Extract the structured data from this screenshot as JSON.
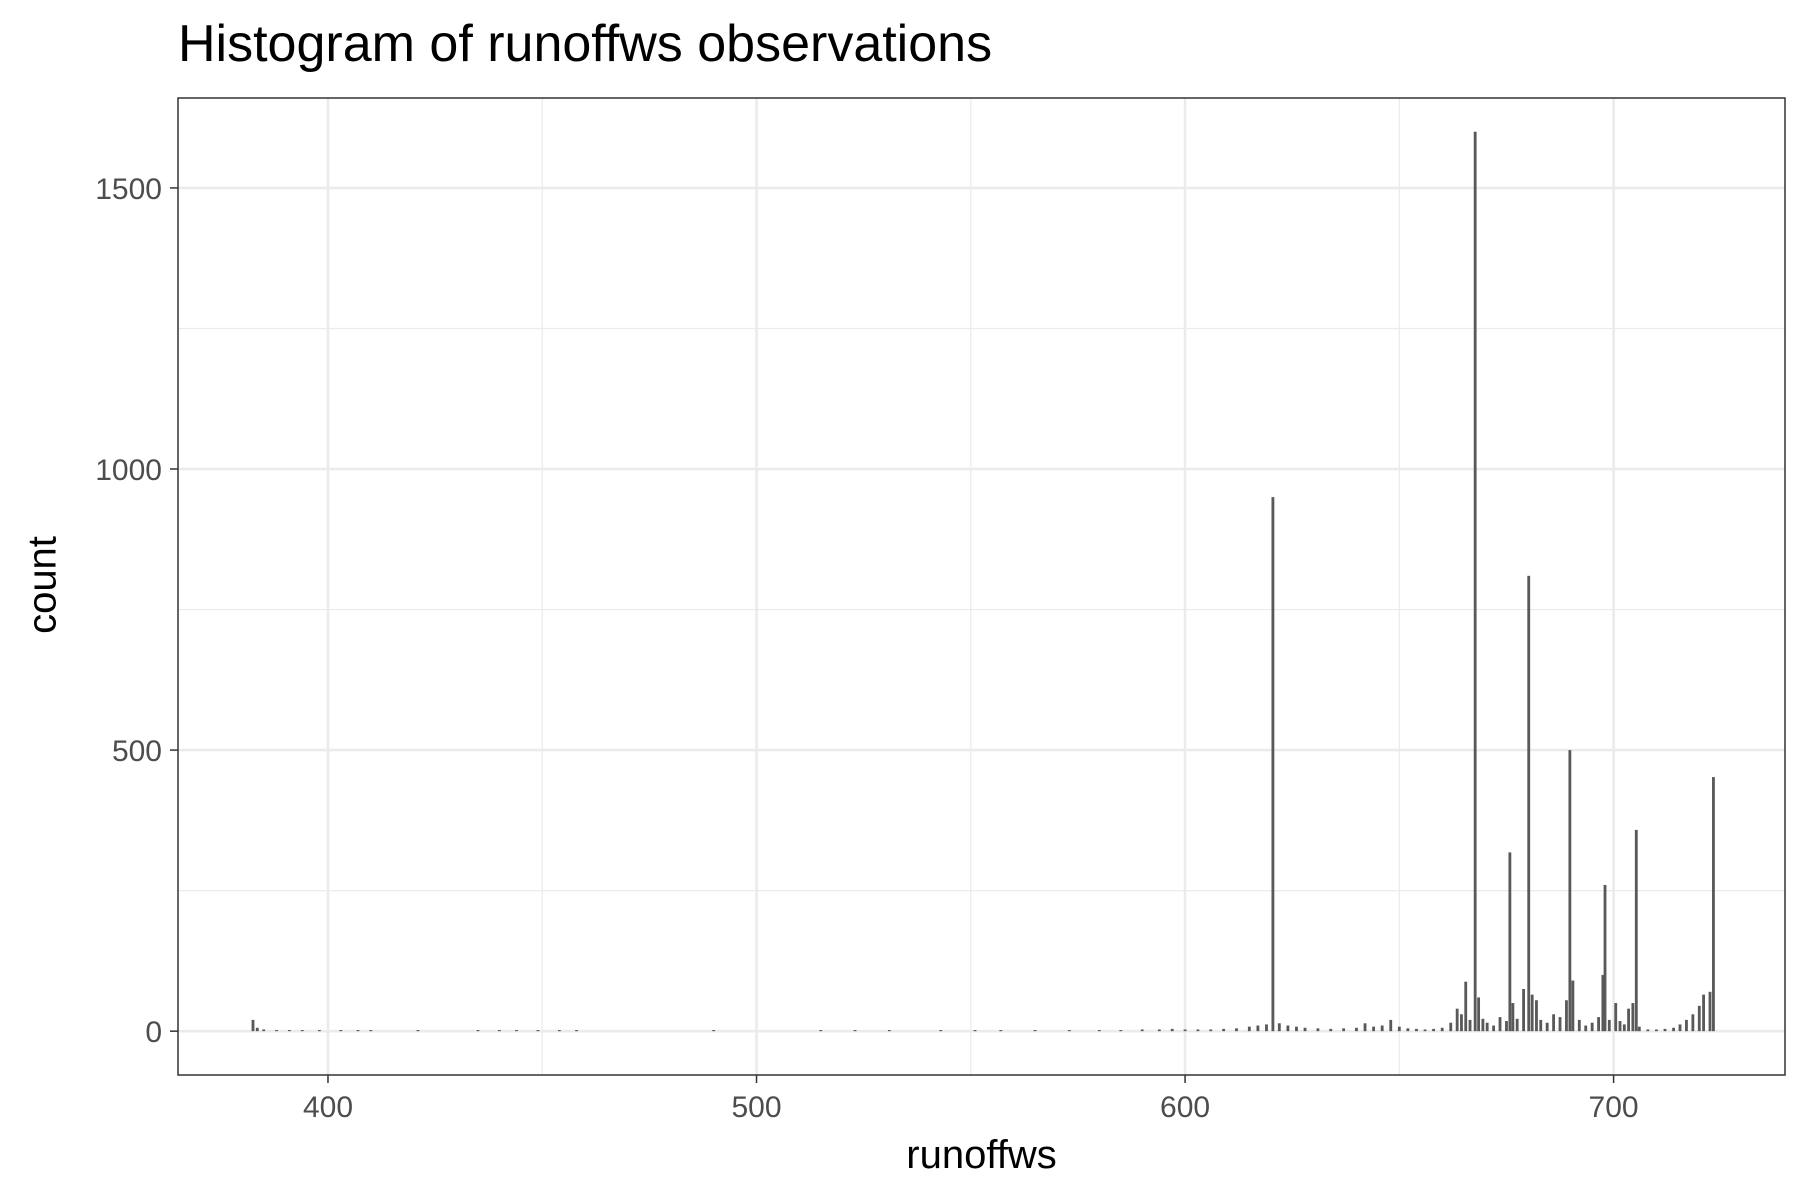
{
  "chart_data": {
    "type": "bar",
    "title": "Histogram of runoffws observations",
    "xlabel": "runoffws",
    "ylabel": "count",
    "xlim": [
      365,
      740
    ],
    "ylim": [
      -78,
      1660
    ],
    "xticks": [
      400,
      500,
      600,
      700
    ],
    "yticks": [
      0,
      500,
      1000,
      1500
    ],
    "grid": true,
    "bar_color": "#595959",
    "binwidth": 0.66,
    "bins": [
      {
        "x": 382.5,
        "count": 20
      },
      {
        "x": 383.5,
        "count": 6
      },
      {
        "x": 385,
        "count": 3
      },
      {
        "x": 388,
        "count": 2
      },
      {
        "x": 391,
        "count": 2
      },
      {
        "x": 394,
        "count": 2
      },
      {
        "x": 398,
        "count": 2
      },
      {
        "x": 403,
        "count": 2
      },
      {
        "x": 407,
        "count": 2
      },
      {
        "x": 410,
        "count": 2
      },
      {
        "x": 421,
        "count": 2
      },
      {
        "x": 435,
        "count": 2
      },
      {
        "x": 440,
        "count": 2
      },
      {
        "x": 444,
        "count": 2
      },
      {
        "x": 449,
        "count": 2
      },
      {
        "x": 454,
        "count": 2
      },
      {
        "x": 458,
        "count": 2
      },
      {
        "x": 490,
        "count": 2
      },
      {
        "x": 515,
        "count": 2
      },
      {
        "x": 523,
        "count": 2
      },
      {
        "x": 531,
        "count": 2
      },
      {
        "x": 543,
        "count": 2
      },
      {
        "x": 551,
        "count": 2
      },
      {
        "x": 557,
        "count": 2
      },
      {
        "x": 565,
        "count": 2
      },
      {
        "x": 573,
        "count": 2
      },
      {
        "x": 580,
        "count": 2
      },
      {
        "x": 585,
        "count": 2
      },
      {
        "x": 590,
        "count": 3
      },
      {
        "x": 594,
        "count": 3
      },
      {
        "x": 597,
        "count": 4
      },
      {
        "x": 600,
        "count": 3
      },
      {
        "x": 603,
        "count": 3
      },
      {
        "x": 606,
        "count": 3
      },
      {
        "x": 609,
        "count": 4
      },
      {
        "x": 612,
        "count": 5
      },
      {
        "x": 615,
        "count": 8
      },
      {
        "x": 617,
        "count": 10
      },
      {
        "x": 619,
        "count": 12
      },
      {
        "x": 620.5,
        "count": 950
      },
      {
        "x": 622,
        "count": 14
      },
      {
        "x": 624,
        "count": 10
      },
      {
        "x": 626,
        "count": 8
      },
      {
        "x": 628,
        "count": 6
      },
      {
        "x": 631,
        "count": 5
      },
      {
        "x": 634,
        "count": 4
      },
      {
        "x": 637,
        "count": 5
      },
      {
        "x": 640,
        "count": 6
      },
      {
        "x": 642,
        "count": 14
      },
      {
        "x": 644,
        "count": 8
      },
      {
        "x": 646,
        "count": 10
      },
      {
        "x": 648,
        "count": 20
      },
      {
        "x": 650,
        "count": 8
      },
      {
        "x": 652,
        "count": 5
      },
      {
        "x": 654,
        "count": 4
      },
      {
        "x": 656,
        "count": 3
      },
      {
        "x": 658,
        "count": 4
      },
      {
        "x": 660,
        "count": 6
      },
      {
        "x": 662,
        "count": 15
      },
      {
        "x": 663.5,
        "count": 40
      },
      {
        "x": 664.5,
        "count": 30
      },
      {
        "x": 665.5,
        "count": 88
      },
      {
        "x": 666.5,
        "count": 20
      },
      {
        "x": 667.7,
        "count": 1600
      },
      {
        "x": 668.5,
        "count": 60
      },
      {
        "x": 669.5,
        "count": 22
      },
      {
        "x": 670.5,
        "count": 15
      },
      {
        "x": 672,
        "count": 10
      },
      {
        "x": 673.5,
        "count": 25
      },
      {
        "x": 675,
        "count": 18
      },
      {
        "x": 675.8,
        "count": 318
      },
      {
        "x": 676.5,
        "count": 50
      },
      {
        "x": 677.5,
        "count": 22
      },
      {
        "x": 679,
        "count": 75
      },
      {
        "x": 680.2,
        "count": 810
      },
      {
        "x": 681,
        "count": 65
      },
      {
        "x": 682,
        "count": 55
      },
      {
        "x": 683,
        "count": 20
      },
      {
        "x": 684.5,
        "count": 15
      },
      {
        "x": 686,
        "count": 30
      },
      {
        "x": 687.5,
        "count": 25
      },
      {
        "x": 689,
        "count": 55
      },
      {
        "x": 689.8,
        "count": 500
      },
      {
        "x": 690.5,
        "count": 90
      },
      {
        "x": 692,
        "count": 20
      },
      {
        "x": 693.5,
        "count": 10
      },
      {
        "x": 695,
        "count": 15
      },
      {
        "x": 696.5,
        "count": 25
      },
      {
        "x": 697.5,
        "count": 100
      },
      {
        "x": 698,
        "count": 260
      },
      {
        "x": 699,
        "count": 20
      },
      {
        "x": 700.5,
        "count": 50
      },
      {
        "x": 701.5,
        "count": 18
      },
      {
        "x": 702.5,
        "count": 12
      },
      {
        "x": 703.5,
        "count": 40
      },
      {
        "x": 704.5,
        "count": 50
      },
      {
        "x": 705.3,
        "count": 358
      },
      {
        "x": 706,
        "count": 8
      },
      {
        "x": 708,
        "count": 3
      },
      {
        "x": 710,
        "count": 3
      },
      {
        "x": 712,
        "count": 4
      },
      {
        "x": 714,
        "count": 6
      },
      {
        "x": 715.5,
        "count": 12
      },
      {
        "x": 717,
        "count": 20
      },
      {
        "x": 718.5,
        "count": 30
      },
      {
        "x": 720,
        "count": 45
      },
      {
        "x": 721,
        "count": 65
      },
      {
        "x": 722.5,
        "count": 70
      },
      {
        "x": 723.3,
        "count": 452
      }
    ]
  }
}
